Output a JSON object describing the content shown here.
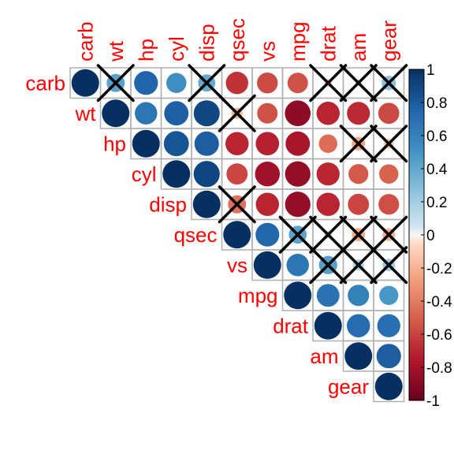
{
  "chart_data": {
    "type": "heatmap",
    "variables": [
      "carb",
      "wt",
      "hp",
      "cyl",
      "disp",
      "qsec",
      "vs",
      "mpg",
      "drat",
      "am",
      "gear"
    ],
    "matrix": [
      [
        1,
        0.43,
        0.75,
        0.53,
        0.39,
        -0.66,
        -0.57,
        -0.55,
        -0.09,
        0.06,
        0.27
      ],
      [
        0.43,
        1,
        0.66,
        0.78,
        0.89,
        -0.17,
        -0.55,
        -0.87,
        -0.71,
        -0.69,
        -0.58
      ],
      [
        0.75,
        0.66,
        1,
        0.83,
        0.79,
        -0.71,
        -0.72,
        -0.78,
        -0.45,
        -0.24,
        -0.13
      ],
      [
        0.53,
        0.78,
        0.83,
        1,
        0.9,
        -0.59,
        -0.81,
        -0.85,
        -0.7,
        -0.52,
        -0.49
      ],
      [
        0.39,
        0.89,
        0.79,
        0.9,
        1,
        -0.43,
        -0.71,
        -0.85,
        -0.71,
        -0.59,
        -0.56
      ],
      [
        -0.66,
        -0.17,
        -0.71,
        -0.59,
        -0.43,
        1,
        0.74,
        0.42,
        0.09,
        -0.23,
        -0.21
      ],
      [
        -0.57,
        -0.55,
        -0.72,
        -0.81,
        -0.71,
        0.74,
        1,
        0.66,
        0.44,
        0.17,
        0.21
      ],
      [
        -0.55,
        -0.87,
        -0.78,
        -0.85,
        -0.85,
        0.42,
        0.66,
        1,
        0.68,
        0.6,
        0.48
      ],
      [
        -0.09,
        -0.71,
        -0.45,
        -0.7,
        -0.71,
        0.09,
        0.44,
        0.68,
        1,
        0.71,
        0.7
      ],
      [
        0.06,
        -0.69,
        -0.24,
        -0.52,
        -0.59,
        -0.23,
        0.17,
        0.6,
        0.71,
        1,
        0.79
      ],
      [
        0.27,
        -0.58,
        -0.13,
        -0.49,
        -0.56,
        -0.21,
        0.21,
        0.48,
        0.7,
        0.79,
        1
      ]
    ],
    "insignificant_pairs": [
      [
        "carb",
        "wt"
      ],
      [
        "carb",
        "disp"
      ],
      [
        "carb",
        "drat"
      ],
      [
        "carb",
        "am"
      ],
      [
        "carb",
        "gear"
      ],
      [
        "wt",
        "qsec"
      ],
      [
        "hp",
        "am"
      ],
      [
        "hp",
        "gear"
      ],
      [
        "disp",
        "qsec"
      ],
      [
        "qsec",
        "mpg"
      ],
      [
        "qsec",
        "drat"
      ],
      [
        "qsec",
        "am"
      ],
      [
        "qsec",
        "gear"
      ],
      [
        "vs",
        "drat"
      ],
      [
        "vs",
        "am"
      ],
      [
        "vs",
        "gear"
      ]
    ],
    "triangle": "upper",
    "colorbar": {
      "range": [
        -1,
        1
      ],
      "tick_labels": [
        "-1",
        "-0.8",
        "-0.6",
        "-0.4",
        "-0.2",
        "0",
        "0.2",
        "0.4",
        "0.6",
        "0.8",
        "1"
      ],
      "placement": "right"
    },
    "colors": {
      "negative_end": "#67001f",
      "neutral": "#f7f7f7",
      "positive_end": "#053061",
      "label_color": "#ff0000",
      "grid_color": "#b0b0b0"
    }
  }
}
